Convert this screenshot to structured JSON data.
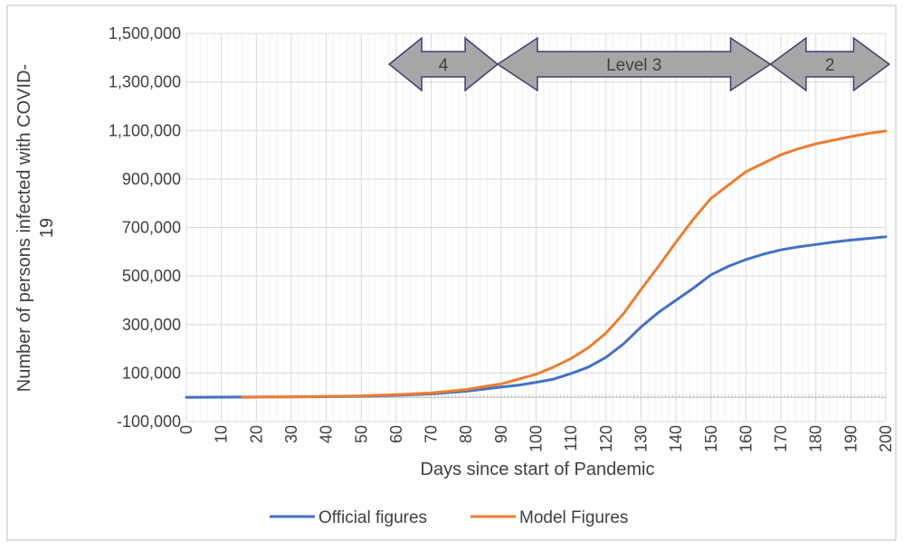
{
  "chart_data": {
    "type": "line",
    "title": "",
    "xlabel": "Days since start of Pandemic",
    "ylabel": "Number of persons infected with COVID-19",
    "ylabel_lines": [
      "Number of persons infected with COVID-",
      "19"
    ],
    "xlim": [
      0,
      200
    ],
    "ylim": [
      -100000,
      1500000
    ],
    "x_ticks": [
      "0",
      "10",
      "20",
      "30",
      "40",
      "50",
      "60",
      "70",
      "80",
      "90",
      "100",
      "110",
      "120",
      "130",
      "140",
      "150",
      "160",
      "170",
      "180",
      "190",
      "200"
    ],
    "y_ticks": [
      "-100,000",
      "100,000",
      "300,000",
      "500,000",
      "700,000",
      "900,000",
      "1,100,000",
      "1,300,000",
      "1,500,000"
    ],
    "grid": true,
    "legend_position": "bottom",
    "series": [
      {
        "name": "Official figures",
        "color": "#4472C4",
        "points": [
          [
            0,
            0
          ],
          [
            20,
            1000
          ],
          [
            40,
            2500
          ],
          [
            50,
            4500
          ],
          [
            60,
            8000
          ],
          [
            70,
            14000
          ],
          [
            80,
            25000
          ],
          [
            90,
            42000
          ],
          [
            95,
            50000
          ],
          [
            100,
            62000
          ],
          [
            105,
            75000
          ],
          [
            110,
            98000
          ],
          [
            115,
            125000
          ],
          [
            120,
            165000
          ],
          [
            125,
            220000
          ],
          [
            130,
            290000
          ],
          [
            135,
            350000
          ],
          [
            140,
            400000
          ],
          [
            145,
            450000
          ],
          [
            150,
            505000
          ],
          [
            155,
            540000
          ],
          [
            160,
            568000
          ],
          [
            165,
            590000
          ],
          [
            170,
            608000
          ],
          [
            175,
            620000
          ],
          [
            180,
            630000
          ],
          [
            185,
            640000
          ],
          [
            190,
            648000
          ],
          [
            195,
            655000
          ],
          [
            200,
            662000
          ]
        ]
      },
      {
        "name": "Model Figures",
        "color": "#ED7D31",
        "points": [
          [
            16,
            0
          ],
          [
            20,
            800
          ],
          [
            30,
            2000
          ],
          [
            40,
            3500
          ],
          [
            50,
            6000
          ],
          [
            60,
            11000
          ],
          [
            70,
            18000
          ],
          [
            80,
            32000
          ],
          [
            90,
            55000
          ],
          [
            100,
            95000
          ],
          [
            105,
            125000
          ],
          [
            110,
            160000
          ],
          [
            115,
            205000
          ],
          [
            120,
            265000
          ],
          [
            125,
            345000
          ],
          [
            130,
            445000
          ],
          [
            135,
            540000
          ],
          [
            140,
            640000
          ],
          [
            145,
            735000
          ],
          [
            150,
            820000
          ],
          [
            155,
            875000
          ],
          [
            160,
            930000
          ],
          [
            165,
            965000
          ],
          [
            170,
            1000000
          ],
          [
            175,
            1025000
          ],
          [
            180,
            1045000
          ],
          [
            185,
            1060000
          ],
          [
            190,
            1075000
          ],
          [
            195,
            1088000
          ],
          [
            200,
            1098000
          ]
        ]
      }
    ],
    "annotations": [
      {
        "label": "4",
        "x_start": 58,
        "x_end": 89
      },
      {
        "label": "Level 3",
        "x_start": 89,
        "x_end": 167
      },
      {
        "label": "2",
        "x_start": 167,
        "x_end": 201
      }
    ]
  }
}
